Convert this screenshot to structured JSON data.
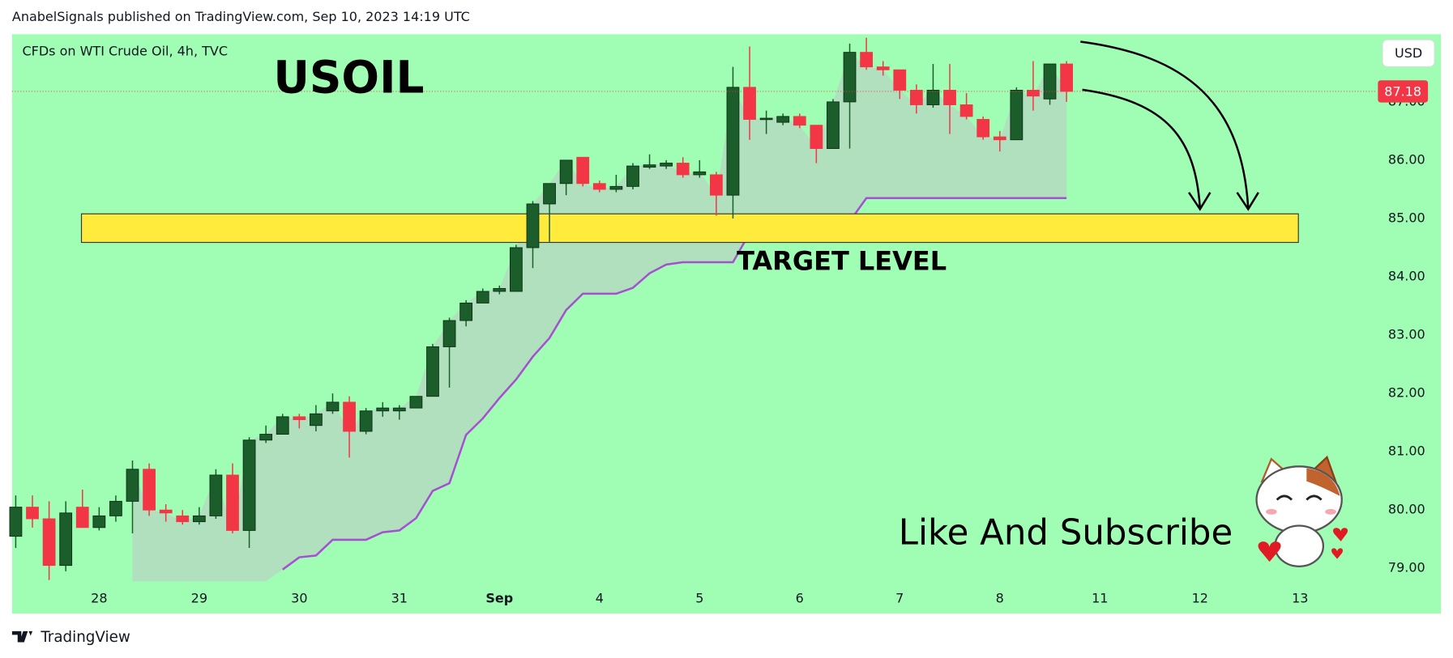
{
  "header": {
    "publisher": "AnabelSignals published on TradingView.com, Sep 10, 2023 14:19 UTC"
  },
  "footer": {
    "brand": "TradingView"
  },
  "chart_data": {
    "type": "candlestick",
    "symbol": "CFDs on WTI Crude Oil, 4h, TVC",
    "title": "USOIL",
    "annotation": "Like And Subscribe",
    "currency": "USD",
    "background": "#9ffdb4",
    "up_color": "#1b5e2b",
    "down_color": "#f23645",
    "open": [
      79.55,
      80.05,
      79.85,
      79.05,
      80.05,
      79.7,
      79.9,
      80.15,
      80.7,
      80.0,
      79.9,
      79.8,
      79.9,
      80.6,
      79.65,
      81.2,
      81.3,
      81.6,
      81.45,
      81.7,
      81.85,
      81.35,
      81.7,
      81.7,
      81.75,
      81.95,
      82.8,
      83.25,
      83.55,
      83.75,
      83.75,
      84.5,
      85.25,
      85.6,
      86.05,
      85.6,
      85.5,
      85.55,
      85.88,
      85.9,
      85.95,
      85.75,
      85.75,
      85.4,
      87.25,
      86.7,
      86.65,
      86.75,
      86.6,
      86.2,
      87.0,
      87.85,
      87.6,
      87.55,
      87.2,
      86.95,
      87.2,
      86.95,
      86.7,
      86.4,
      86.35,
      87.2,
      87.05,
      87.65
    ],
    "high": [
      80.25,
      80.25,
      80.15,
      80.15,
      80.35,
      80.05,
      80.25,
      80.85,
      80.8,
      80.1,
      80.0,
      80.05,
      80.7,
      80.8,
      81.25,
      81.45,
      81.65,
      81.65,
      81.8,
      82.0,
      81.95,
      81.75,
      81.85,
      81.8,
      81.95,
      82.85,
      83.3,
      83.6,
      83.8,
      83.85,
      84.55,
      85.3,
      85.6,
      86.0,
      86.05,
      85.65,
      85.75,
      85.95,
      86.1,
      86.0,
      86.05,
      86.0,
      85.8,
      87.6,
      87.95,
      86.85,
      86.8,
      86.8,
      86.6,
      87.05,
      88.0,
      88.1,
      87.7,
      87.55,
      87.3,
      87.65,
      87.65,
      87.15,
      86.75,
      86.5,
      87.25,
      87.7,
      87.65,
      87.7
    ],
    "low": [
      79.35,
      79.7,
      78.8,
      78.95,
      79.7,
      79.65,
      79.8,
      79.6,
      79.9,
      79.8,
      79.75,
      79.75,
      79.85,
      79.6,
      79.35,
      81.15,
      81.3,
      81.4,
      81.35,
      81.65,
      80.9,
      81.3,
      81.6,
      81.55,
      81.75,
      81.95,
      82.1,
      83.15,
      83.55,
      83.7,
      83.75,
      84.15,
      84.6,
      85.4,
      85.55,
      85.45,
      85.45,
      85.5,
      85.85,
      85.85,
      85.7,
      85.7,
      85.05,
      85.0,
      86.35,
      86.45,
      86.6,
      86.55,
      85.95,
      86.2,
      86.2,
      87.55,
      87.45,
      87.05,
      86.8,
      86.9,
      86.45,
      86.7,
      86.35,
      86.15,
      86.35,
      86.85,
      86.95,
      87.0
    ],
    "close": [
      80.05,
      79.85,
      79.05,
      79.95,
      79.7,
      79.9,
      80.15,
      80.7,
      80.0,
      79.95,
      79.8,
      79.9,
      80.6,
      79.65,
      81.2,
      81.3,
      81.6,
      81.55,
      81.65,
      81.85,
      81.35,
      81.7,
      81.75,
      81.75,
      81.95,
      82.8,
      83.25,
      83.55,
      83.75,
      83.8,
      84.5,
      85.25,
      85.6,
      86.0,
      85.6,
      85.5,
      85.55,
      85.9,
      85.92,
      85.95,
      85.75,
      85.8,
      85.4,
      87.25,
      86.7,
      86.72,
      86.75,
      86.6,
      86.2,
      87.0,
      87.85,
      87.6,
      87.55,
      87.2,
      86.95,
      87.2,
      86.95,
      86.75,
      86.4,
      86.35,
      87.2,
      87.1,
      87.65,
      87.18
    ],
    "trail": {
      "color": "#a64fd0",
      "values": [
        null,
        null,
        null,
        null,
        null,
        null,
        null,
        null,
        null,
        null,
        null,
        null,
        null,
        null,
        null,
        null,
        78.98,
        79.19,
        79.22,
        79.49,
        79.49,
        79.49,
        79.62,
        79.65,
        79.86,
        80.33,
        80.46,
        81.29,
        81.57,
        81.92,
        82.24,
        82.63,
        82.95,
        83.43,
        83.71,
        83.71,
        83.71,
        83.81,
        84.06,
        84.21,
        84.25,
        84.25,
        84.25,
        84.25,
        84.75,
        84.95,
        84.95,
        84.95,
        84.95,
        84.95,
        84.95,
        85.35,
        85.35,
        85.35,
        85.35,
        85.35,
        85.35,
        85.35,
        85.35,
        85.35,
        85.35,
        85.35,
        85.35,
        85.35
      ]
    },
    "target_zone": {
      "label": "TARGET LEVEL",
      "color": "#ffeb3b",
      "low": 84.59,
      "high": 85.08,
      "start": 3.94,
      "end": 76.9
    },
    "xlim": [
      -0.22,
      81.28
    ],
    "xticks": [
      {
        "value": 5,
        "label": "28"
      },
      {
        "value": 11,
        "label": "29"
      },
      {
        "value": 17,
        "label": "30"
      },
      {
        "value": 23,
        "label": "31"
      },
      {
        "value": 29,
        "label": "Sep"
      },
      {
        "value": 35,
        "label": "4"
      },
      {
        "value": 41,
        "label": "5"
      },
      {
        "value": 47,
        "label": "6"
      },
      {
        "value": 53,
        "label": "7"
      },
      {
        "value": 59,
        "label": "8"
      },
      {
        "value": 65,
        "label": "11"
      },
      {
        "value": 71,
        "label": "12"
      },
      {
        "value": 77,
        "label": "13"
      }
    ],
    "ylim": [
      78.78,
      88.16
    ],
    "yticks": [
      {
        "value": 79,
        "label": "79.00"
      },
      {
        "value": 80,
        "label": "80.00"
      },
      {
        "value": 81,
        "label": "81.00"
      },
      {
        "value": 82,
        "label": "82.00"
      },
      {
        "value": 83,
        "label": "83.00"
      },
      {
        "value": 84,
        "label": "84.00"
      },
      {
        "value": 85,
        "label": "85.00"
      },
      {
        "value": 86,
        "label": "86.00"
      },
      {
        "value": 87,
        "label": "87.00"
      }
    ]
  }
}
